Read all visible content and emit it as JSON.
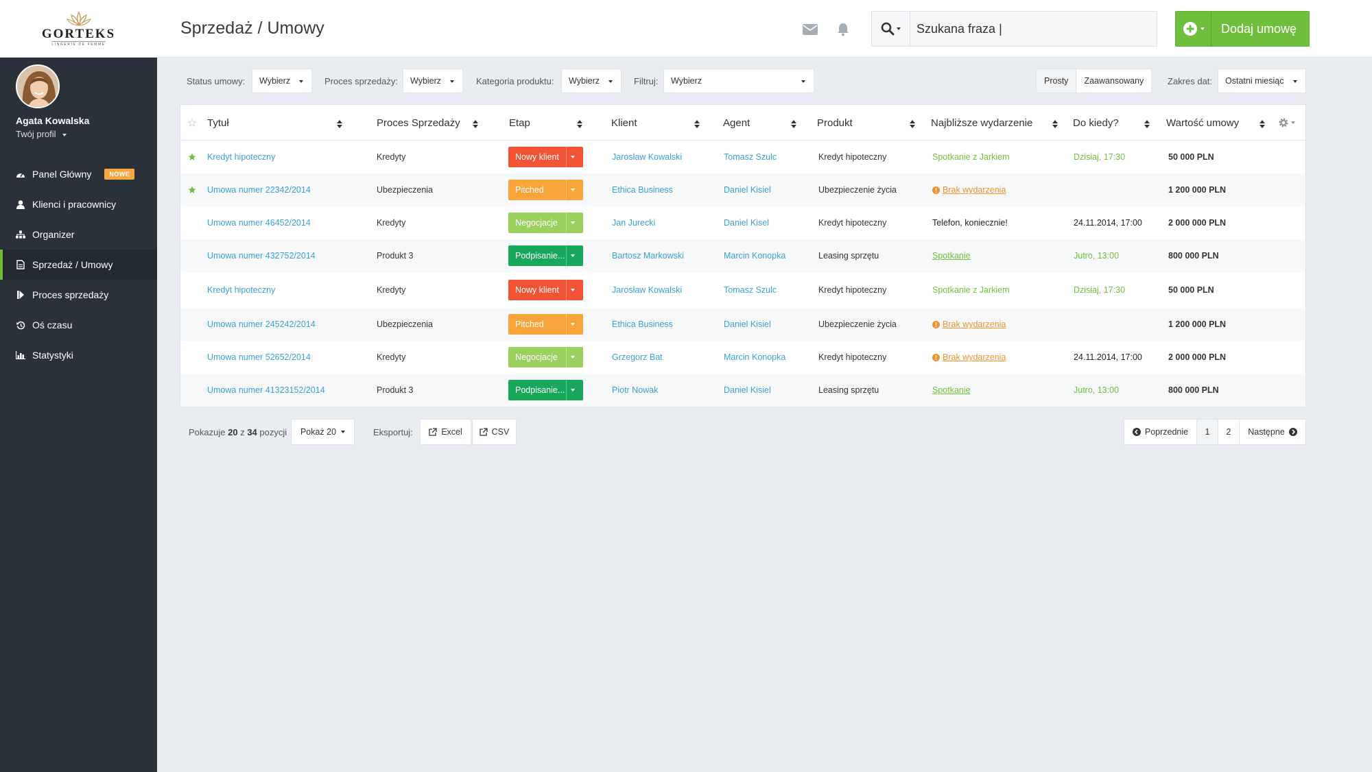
{
  "brand": {
    "name": "GORTEKS",
    "tagline": "LINGERIE DE FEMME"
  },
  "header": {
    "title": "Sprzedaż / Umowy",
    "search_value": "Szukana fraza |",
    "add_button": "Dodaj umowę"
  },
  "user": {
    "name": "Agata Kowalska",
    "profile": "Twój profil"
  },
  "sidebar": {
    "items": [
      {
        "label": "Panel Główny",
        "icon": "dashboard-icon",
        "badge": "NOWE"
      },
      {
        "label": "Klienci i pracownicy",
        "icon": "user-icon"
      },
      {
        "label": "Organizer",
        "icon": "sitemap-icon"
      },
      {
        "label": "Sprzedaż / Umowy",
        "icon": "document-icon",
        "active": true
      },
      {
        "label": "Proces sprzedaży",
        "icon": "step-forward-icon"
      },
      {
        "label": "Oś czasu",
        "icon": "history-icon"
      },
      {
        "label": "Statystyki",
        "icon": "bar-chart-icon"
      }
    ]
  },
  "filters": {
    "status_label": "Status umowy:",
    "status_value": "Wybierz",
    "process_label": "Proces sprzedaży:",
    "process_value": "Wybierz",
    "category_label": "Kategoria produktu:",
    "category_value": "Wybierz",
    "filter_label": "Filtruj:",
    "filter_value": "Wybierz",
    "mode_simple": "Prosty",
    "mode_advanced": "Zaawansowany",
    "date_label": "Zakres dat:",
    "date_value": "Ostatni miesiąc"
  },
  "table": {
    "columns": [
      "Tytuł",
      "Proces Sprzedaży",
      "Etap",
      "Klient",
      "Agent",
      "Produkt",
      "Najbliższe wydarzenie",
      "Do kiedy?",
      "Wartość umowy"
    ],
    "rows": [
      {
        "starred": true,
        "title": "Kredyt hipoteczny",
        "process": "Kredyty",
        "stage": "Nowy klient",
        "client": "Jarosław Kowalski",
        "agent": "Tomasz Szulc",
        "product": "Kredyt hipoteczny",
        "event": "Spotkanie z Jarkiem",
        "due": "Dzisiaj, 17:30",
        "value": "50 000 PLN"
      },
      {
        "starred": true,
        "title": "Umowa numer 22342/2014",
        "process": "Ubezpieczenia",
        "stage": "Pitched",
        "client": "Ethica Business",
        "agent": "Daniel Kisiel",
        "product": "Ubezpieczenie życia",
        "event": "Brak wydarzenia",
        "due": "",
        "value": "1 200 000 PLN"
      },
      {
        "starred": false,
        "title": "Umowa numer 46452/2014",
        "process": "Kredyty",
        "stage": "Negocjacje",
        "client": "Jan Jurecki",
        "agent": "Daniel Kisel",
        "product": "Kredyt hipoteczny",
        "event": "Telefon, koniecznie!",
        "due": "24.11.2014, 17:00",
        "value": "2 000 000 PLN"
      },
      {
        "starred": false,
        "title": "Umowa numer 432752/2014",
        "process": "Produkt 3",
        "stage": "Podpisanie...",
        "client": "Bartosz Markowski",
        "agent": "Marcin Konopka",
        "product": "Leasing sprzętu",
        "event": "Spotkanie",
        "due": "Jutro, 13:00",
        "value": "800 000 PLN"
      },
      {
        "starred": false,
        "title": "Kredyt hipoteczny",
        "process": "Kredyty",
        "stage": "Nowy klient",
        "client": "Jarosław Kowalski",
        "agent": "Tomasz Szulc",
        "product": "Kredyt hipoteczny",
        "event": "Spotkanie z Jarkiem",
        "due": "Dzisiaj, 17:30",
        "value": "50 000 PLN"
      },
      {
        "starred": false,
        "title": "Umowa numer 245242/2014",
        "process": "Ubezpieczenia",
        "stage": "Pitched",
        "client": "Ethica Business",
        "agent": "Daniel Kisiel",
        "product": "Ubezpieczenie życia",
        "event": "Brak wydarzenia",
        "due": "",
        "value": "1 200 000 PLN"
      },
      {
        "starred": false,
        "title": "Umowa numer 52652/2014",
        "process": "Kredyty",
        "stage": "Negocjacje",
        "client": "Grzegorz Bat",
        "agent": "Marcin Konopka",
        "product": "Kredyt hipoteczny",
        "event": "Brak wydarzenia",
        "due": "24.11.2014, 17:00",
        "value": "2 000 000 PLN"
      },
      {
        "starred": false,
        "title": "Umowa numer 41323152/2014",
        "process": "Produkt 3",
        "stage": "Podpisanie...",
        "client": "Piotr Nowak",
        "agent": "Daniel Kisiel",
        "product": "Leasing sprzętu",
        "event": "Spotkanie",
        "due": "Jutro, 13:00",
        "value": "800 000 PLN"
      }
    ]
  },
  "footer": {
    "showing_prefix": "Pokazuje",
    "showing_shown": "20",
    "showing_mid": "z",
    "showing_total": "34",
    "showing_suffix": "pozycji",
    "per_page": "Pokaż 20",
    "export_label": "Eksportuj:",
    "export_excel": "Excel",
    "export_csv": "CSV",
    "prev": "Poprzednie",
    "page1": "1",
    "page2": "2",
    "next": "Następne"
  },
  "colors": {
    "accent": "#6fbf3d",
    "link": "#3ba0d4",
    "sidebar": "#2b3138",
    "stage_new": "#f25335",
    "stage_pitched": "#f7a43a",
    "stage_negotiation": "#9bd05e",
    "stage_signing": "#17a85c",
    "warning": "#f0922d"
  }
}
